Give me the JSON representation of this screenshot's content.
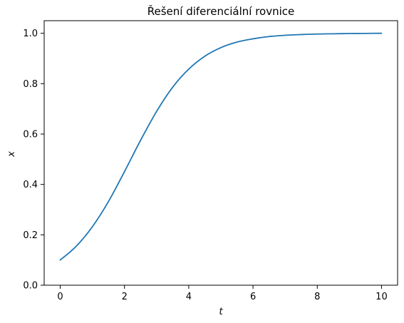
{
  "chart_data": {
    "type": "line",
    "title": "Řešení diferenciální rovnice",
    "xlabel": "t",
    "ylabel": "x",
    "xlim": [
      -0.5,
      10.5
    ],
    "ylim": [
      0.0,
      1.05
    ],
    "xticks": [
      0,
      2,
      4,
      6,
      8,
      10
    ],
    "xtick_labels": [
      "0",
      "2",
      "4",
      "6",
      "8",
      "10"
    ],
    "yticks": [
      0.0,
      0.2,
      0.4,
      0.6,
      0.8,
      1.0
    ],
    "ytick_labels": [
      "0.0",
      "0.2",
      "0.4",
      "0.6",
      "0.8",
      "1.0"
    ],
    "grid": false,
    "series": [
      {
        "color": "#1f77b4",
        "x": [
          0,
          0.5,
          1.0,
          1.5,
          2.0,
          2.5,
          3.0,
          3.5,
          4.0,
          4.5,
          5.0,
          5.5,
          6.0,
          6.5,
          7.0,
          7.5,
          8.0,
          8.5,
          9.0,
          9.5,
          10.0
        ],
        "y": [
          0.1,
          0.155,
          0.232,
          0.332,
          0.451,
          0.575,
          0.69,
          0.786,
          0.858,
          0.909,
          0.943,
          0.965,
          0.978,
          0.987,
          0.992,
          0.995,
          0.997,
          0.998,
          0.999,
          0.9995,
          1.0
        ]
      }
    ]
  }
}
